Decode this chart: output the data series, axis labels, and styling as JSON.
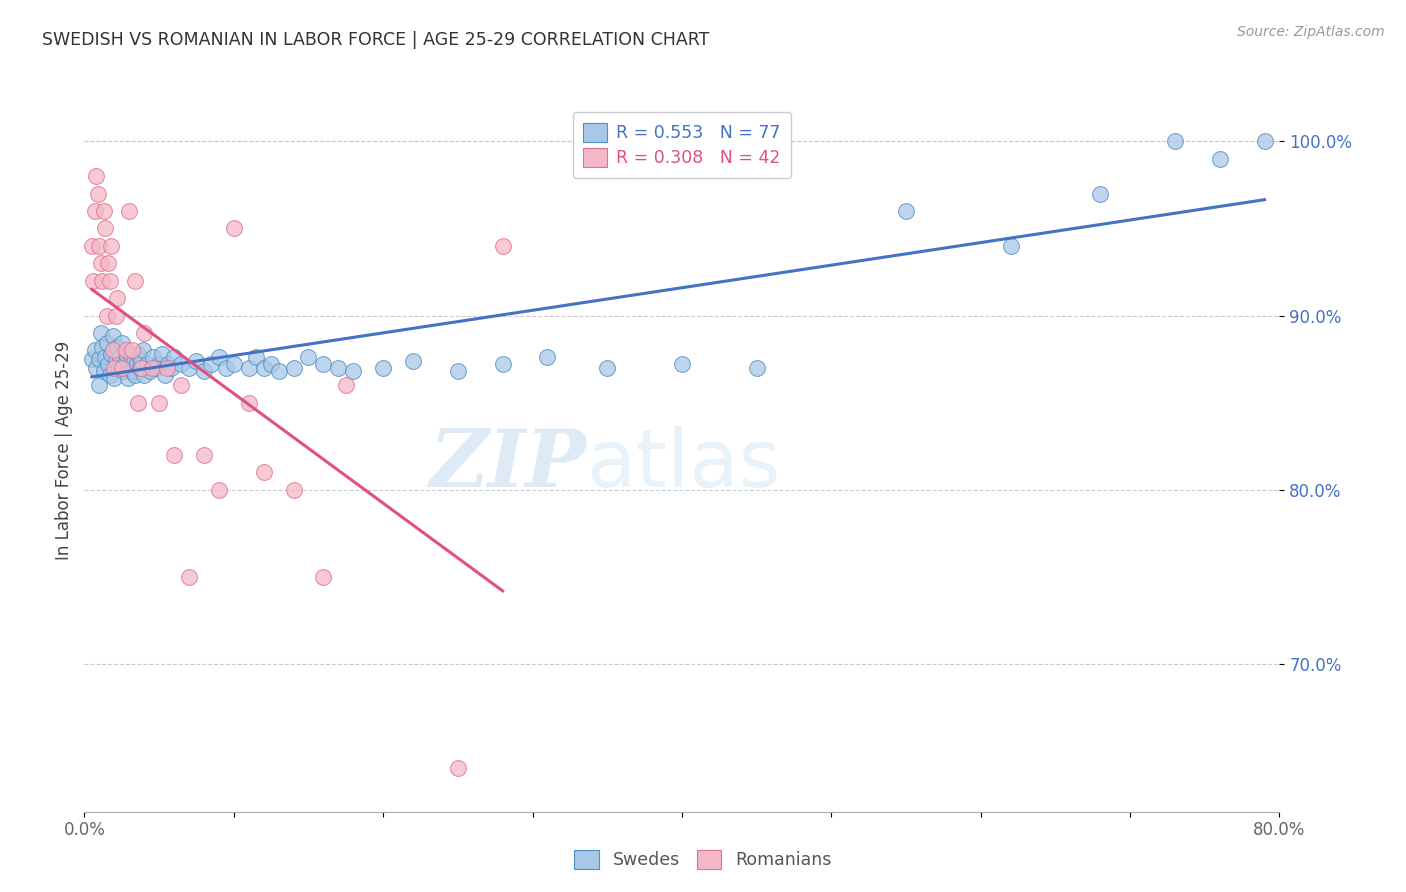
{
  "title": "SWEDISH VS ROMANIAN IN LABOR FORCE | AGE 25-29 CORRELATION CHART",
  "source_text": "Source: ZipAtlas.com",
  "ylabel": "In Labor Force | Age 25-29",
  "xlim": [
    0.0,
    0.8
  ],
  "ylim": [
    0.615,
    1.03
  ],
  "xticks": [
    0.0,
    0.1,
    0.2,
    0.3,
    0.4,
    0.5,
    0.6,
    0.7,
    0.8
  ],
  "xtick_labels": [
    "0.0%",
    "",
    "",
    "",
    "",
    "",
    "",
    "",
    "80.0%"
  ],
  "yticks": [
    0.7,
    0.8,
    0.9,
    1.0
  ],
  "ytick_labels": [
    "70.0%",
    "80.0%",
    "90.0%",
    "100.0%"
  ],
  "legend_blue_text": "R = 0.553   N = 77",
  "legend_pink_text": "R = 0.308   N = 42",
  "blue_fill": "#a8c8e8",
  "blue_edge": "#5090c0",
  "pink_fill": "#f4b8c8",
  "pink_edge": "#e07090",
  "trend_blue": "#4472c4",
  "trend_pink": "#e05080",
  "watermark_zip": "ZIP",
  "watermark_atlas": "atlas",
  "swedes_x": [
    0.005,
    0.007,
    0.008,
    0.01,
    0.01,
    0.011,
    0.012,
    0.013,
    0.014,
    0.015,
    0.016,
    0.017,
    0.018,
    0.019,
    0.02,
    0.021,
    0.022,
    0.023,
    0.024,
    0.025,
    0.026,
    0.027,
    0.028,
    0.029,
    0.03,
    0.031,
    0.032,
    0.033,
    0.034,
    0.035,
    0.036,
    0.037,
    0.038,
    0.039,
    0.04,
    0.042,
    0.044,
    0.046,
    0.048,
    0.05,
    0.052,
    0.054,
    0.056,
    0.058,
    0.06,
    0.065,
    0.07,
    0.075,
    0.08,
    0.085,
    0.09,
    0.095,
    0.1,
    0.11,
    0.115,
    0.12,
    0.125,
    0.13,
    0.14,
    0.15,
    0.16,
    0.17,
    0.18,
    0.2,
    0.22,
    0.25,
    0.28,
    0.31,
    0.35,
    0.4,
    0.45,
    0.55,
    0.62,
    0.68,
    0.73,
    0.76,
    0.79
  ],
  "swedes_y": [
    0.875,
    0.88,
    0.87,
    0.86,
    0.875,
    0.89,
    0.882,
    0.868,
    0.876,
    0.884,
    0.872,
    0.866,
    0.878,
    0.888,
    0.864,
    0.874,
    0.882,
    0.87,
    0.876,
    0.884,
    0.868,
    0.872,
    0.878,
    0.864,
    0.87,
    0.876,
    0.868,
    0.874,
    0.866,
    0.872,
    0.878,
    0.87,
    0.874,
    0.88,
    0.866,
    0.872,
    0.868,
    0.876,
    0.87,
    0.872,
    0.878,
    0.866,
    0.872,
    0.87,
    0.876,
    0.872,
    0.87,
    0.874,
    0.868,
    0.872,
    0.876,
    0.87,
    0.872,
    0.87,
    0.876,
    0.87,
    0.872,
    0.868,
    0.87,
    0.876,
    0.872,
    0.87,
    0.868,
    0.87,
    0.874,
    0.868,
    0.872,
    0.876,
    0.87,
    0.872,
    0.87,
    0.96,
    0.94,
    0.97,
    1.0,
    0.99,
    1.0
  ],
  "romanians_x": [
    0.005,
    0.006,
    0.007,
    0.008,
    0.009,
    0.01,
    0.011,
    0.012,
    0.013,
    0.014,
    0.015,
    0.016,
    0.017,
    0.018,
    0.019,
    0.02,
    0.021,
    0.022,
    0.025,
    0.028,
    0.03,
    0.032,
    0.034,
    0.036,
    0.038,
    0.04,
    0.045,
    0.05,
    0.055,
    0.06,
    0.065,
    0.07,
    0.08,
    0.09,
    0.1,
    0.11,
    0.12,
    0.14,
    0.16,
    0.175,
    0.25,
    0.28
  ],
  "romanians_y": [
    0.94,
    0.92,
    0.96,
    0.98,
    0.97,
    0.94,
    0.93,
    0.92,
    0.96,
    0.95,
    0.9,
    0.93,
    0.92,
    0.94,
    0.88,
    0.87,
    0.9,
    0.91,
    0.87,
    0.88,
    0.96,
    0.88,
    0.92,
    0.85,
    0.87,
    0.89,
    0.87,
    0.85,
    0.87,
    0.82,
    0.86,
    0.75,
    0.82,
    0.8,
    0.95,
    0.85,
    0.81,
    0.8,
    0.75,
    0.86,
    0.64,
    0.94
  ]
}
